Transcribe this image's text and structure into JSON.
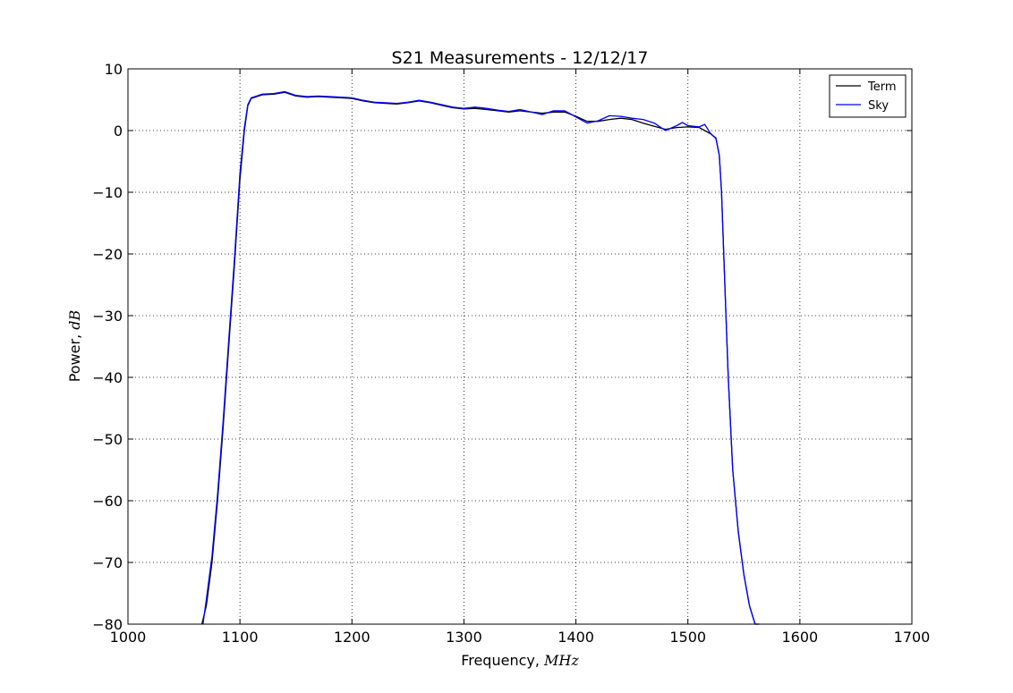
{
  "chart_data": {
    "type": "line",
    "title": "S21 Measurements - 12/12/17",
    "xlabel": "Frequency,",
    "xlabel_unit": "MHz",
    "ylabel": "Power,",
    "ylabel_unit": "dB",
    "xlim": [
      1000,
      1700
    ],
    "ylim": [
      -80,
      10
    ],
    "x_ticks": [
      "1000",
      "1100",
      "1200",
      "1300",
      "1400",
      "1500",
      "1600",
      "1700"
    ],
    "y_ticks": [
      "10",
      "0",
      "−10",
      "−20",
      "−30",
      "−40",
      "−50",
      "−60",
      "−70",
      "−80"
    ],
    "grid": true,
    "legend_position": "top-right",
    "series": [
      {
        "name": "Term",
        "color": "#000000",
        "x": [
          1066,
          1070,
          1075,
          1080,
          1085,
          1090,
          1095,
          1100,
          1104,
          1107,
          1110,
          1115,
          1120,
          1130,
          1140,
          1150,
          1160,
          1170,
          1180,
          1190,
          1200,
          1210,
          1220,
          1230,
          1240,
          1250,
          1260,
          1270,
          1280,
          1290,
          1300,
          1310,
          1320,
          1330,
          1340,
          1350,
          1360,
          1370,
          1380,
          1390,
          1400,
          1410,
          1420,
          1430,
          1440,
          1450,
          1460,
          1470,
          1480,
          1490,
          1500,
          1510,
          1515,
          1520,
          1525,
          1528,
          1530,
          1533,
          1536,
          1540,
          1545,
          1550,
          1555,
          1560,
          1563
        ],
        "y": [
          -80,
          -77,
          -70,
          -60,
          -48,
          -35,
          -22,
          -8,
          0,
          4,
          5.2,
          5.5,
          5.8,
          5.9,
          6.2,
          5.6,
          5.4,
          5.5,
          5.4,
          5.3,
          5.2,
          4.8,
          4.5,
          4.4,
          4.3,
          4.5,
          4.8,
          4.5,
          4.1,
          3.7,
          3.5,
          3.6,
          3.4,
          3.2,
          3.0,
          3.2,
          3.0,
          2.8,
          3.0,
          3.0,
          2.3,
          1.5,
          1.5,
          1.8,
          2.0,
          1.8,
          1.2,
          0.7,
          0.2,
          0.5,
          0.6,
          0.5,
          0.0,
          -0.5,
          -1.2,
          -4,
          -10,
          -25,
          -40,
          -55,
          -65,
          -72,
          -77,
          -80,
          -80
        ]
      },
      {
        "name": "Sky",
        "color": "#0000ff",
        "x": [
          1067,
          1070,
          1075,
          1080,
          1085,
          1090,
          1095,
          1100,
          1104,
          1107,
          1110,
          1115,
          1120,
          1130,
          1140,
          1150,
          1160,
          1170,
          1180,
          1190,
          1200,
          1210,
          1220,
          1230,
          1240,
          1250,
          1260,
          1270,
          1280,
          1290,
          1300,
          1310,
          1320,
          1330,
          1340,
          1350,
          1360,
          1370,
          1380,
          1390,
          1400,
          1410,
          1420,
          1430,
          1440,
          1450,
          1460,
          1470,
          1480,
          1490,
          1495,
          1500,
          1510,
          1515,
          1520,
          1525,
          1528,
          1530,
          1533,
          1536,
          1540,
          1545,
          1550,
          1555,
          1560,
          1564
        ],
        "y": [
          -80,
          -76,
          -69,
          -59,
          -47,
          -34,
          -21,
          -7,
          0.5,
          4.2,
          5.3,
          5.6,
          5.9,
          6.0,
          6.3,
          5.7,
          5.5,
          5.6,
          5.5,
          5.4,
          5.3,
          4.9,
          4.6,
          4.5,
          4.4,
          4.6,
          4.9,
          4.6,
          4.2,
          3.8,
          3.6,
          3.8,
          3.6,
          3.3,
          3.1,
          3.4,
          3.0,
          2.6,
          3.2,
          3.2,
          2.2,
          1.2,
          1.6,
          2.4,
          2.3,
          2.0,
          1.8,
          1.2,
          0.0,
          0.8,
          1.3,
          0.8,
          0.6,
          1.0,
          -0.4,
          -1.3,
          -4,
          -10,
          -25,
          -40,
          -55,
          -65,
          -72,
          -77,
          -80,
          -80
        ]
      }
    ]
  }
}
